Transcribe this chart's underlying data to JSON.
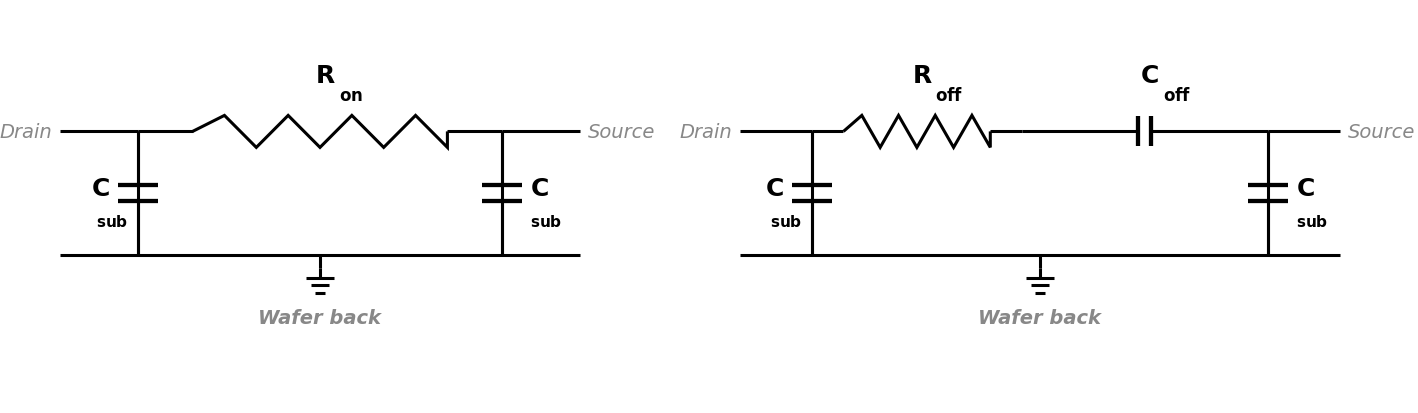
{
  "bg_color": "#ffffff",
  "line_color": "#000000",
  "label_color": "#888888",
  "component_color": "#000000",
  "lw": 2.2,
  "circuit1": {
    "drain_label": "Drain",
    "source_label": "Source",
    "wafer_label": "Wafer back"
  },
  "circuit2": {
    "drain_label": "Drain",
    "source_label": "Source",
    "wafer_label": "Wafer back"
  }
}
